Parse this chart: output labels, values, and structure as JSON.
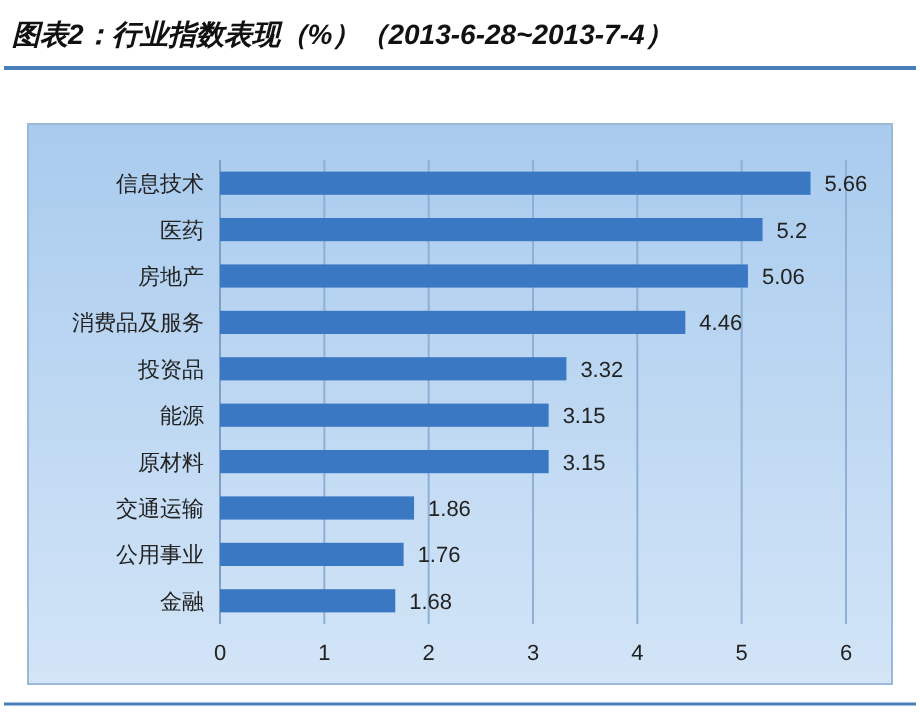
{
  "chart_data": {
    "type": "bar",
    "orientation": "horizontal",
    "title": "图表2：行业指数表现（%）（2013-6-28~2013-7-4）",
    "categories": [
      "信息技术",
      "医药",
      "房地产",
      "消费品及服务",
      "投资品",
      "能源",
      "原材料",
      "交通运输",
      "公用事业",
      "金融"
    ],
    "values": [
      5.66,
      5.2,
      5.06,
      4.46,
      3.32,
      3.15,
      3.15,
      1.86,
      1.76,
      1.68
    ],
    "color": "#3b78c4",
    "xlim": [
      0,
      6
    ],
    "xticks": [
      0,
      1,
      2,
      3,
      4,
      5,
      6
    ],
    "grid": "x",
    "data_labels": true
  }
}
